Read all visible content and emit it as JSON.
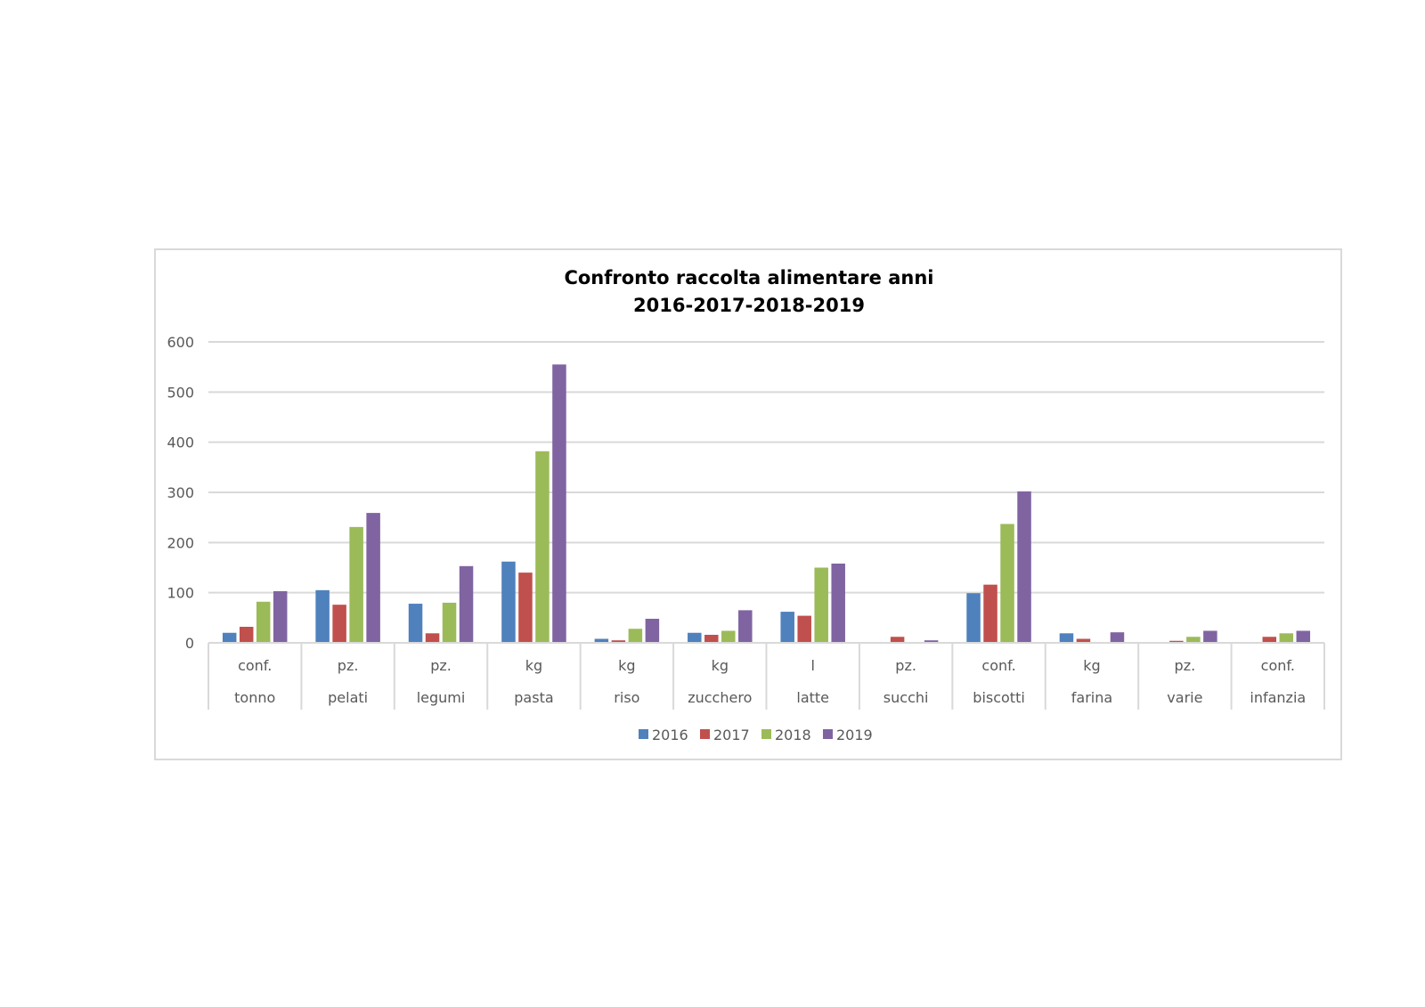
{
  "chart_data": {
    "type": "bar",
    "title_lines": [
      "Confronto raccolta alimentare anni",
      "2016-2017-2018-2019"
    ],
    "categories": [
      {
        "unit": "conf.",
        "name": "tonno"
      },
      {
        "unit": "pz.",
        "name": "pelati"
      },
      {
        "unit": "pz.",
        "name": "legumi"
      },
      {
        "unit": "kg",
        "name": "pasta"
      },
      {
        "unit": "kg",
        "name": "riso"
      },
      {
        "unit": "kg",
        "name": "zucchero"
      },
      {
        "unit": "l",
        "name": "latte"
      },
      {
        "unit": "pz.",
        "name": "succhi"
      },
      {
        "unit": "conf.",
        "name": "biscotti"
      },
      {
        "unit": "kg",
        "name": "farina"
      },
      {
        "unit": "pz.",
        "name": "varie"
      },
      {
        "unit": "conf.",
        "name": "infanzia"
      }
    ],
    "series": [
      {
        "name": "2016",
        "color": "#4f81bd",
        "values": [
          20,
          105,
          78,
          162,
          8,
          20,
          62,
          0,
          99,
          19,
          0,
          0
        ]
      },
      {
        "name": "2017",
        "color": "#c0504d",
        "values": [
          32,
          76,
          19,
          140,
          5,
          16,
          54,
          12,
          116,
          8,
          4,
          12
        ]
      },
      {
        "name": "2018",
        "color": "#9bbb59",
        "values": [
          82,
          231,
          80,
          382,
          28,
          24,
          150,
          0,
          237,
          0,
          12,
          19
        ]
      },
      {
        "name": "2019",
        "color": "#8064a2",
        "values": [
          103,
          259,
          153,
          555,
          48,
          65,
          158,
          5,
          302,
          21,
          24,
          24
        ]
      }
    ],
    "yticks": [
      0,
      100,
      200,
      300,
      400,
      500,
      600
    ],
    "ylim": [
      0,
      600
    ],
    "grid": true,
    "legend_position": "bottom"
  }
}
